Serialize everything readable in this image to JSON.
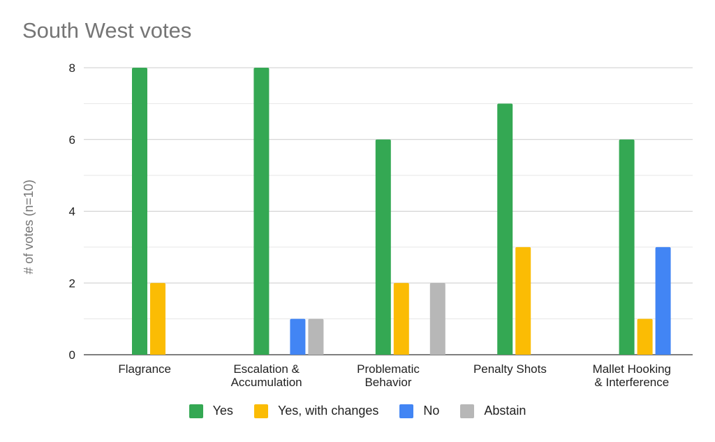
{
  "chart_data": {
    "type": "bar",
    "title": "South West votes",
    "xlabel": "",
    "ylabel": "# of votes (n=10)",
    "ylim": [
      0,
      8
    ],
    "yticks": [
      0,
      2,
      4,
      6,
      8
    ],
    "grid": true,
    "legend_position": "bottom",
    "categories": [
      [
        "Flagrance"
      ],
      [
        "Escalation &",
        "Accumulation"
      ],
      [
        "Problematic",
        "Behavior"
      ],
      [
        "Penalty Shots"
      ],
      [
        "Mallet Hooking",
        "& Interference"
      ]
    ],
    "series": [
      {
        "name": "Yes",
        "color": "#34a853",
        "values": [
          8,
          8,
          6,
          7,
          6
        ]
      },
      {
        "name": "Yes, with changes",
        "color": "#fbbc04",
        "values": [
          2,
          0,
          2,
          3,
          1
        ]
      },
      {
        "name": "No",
        "color": "#4285f4",
        "values": [
          0,
          1,
          0,
          0,
          3
        ]
      },
      {
        "name": "Abstain",
        "color": "#b7b7b7",
        "values": [
          0,
          1,
          2,
          0,
          0
        ]
      }
    ]
  }
}
